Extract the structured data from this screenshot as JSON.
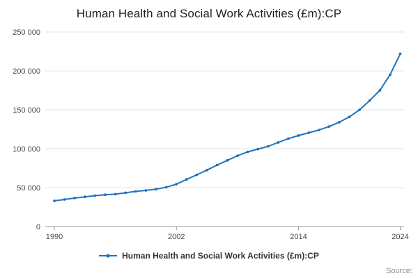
{
  "title": "Human Health and Social Work Activities (£m):CP",
  "legend": {
    "label": "Human Health and Social Work Activities (£m):CP"
  },
  "source_label": "Source:",
  "colors": {
    "line": "#2073bc",
    "grid": "#e3e3e3",
    "axis": "#9a9a9a",
    "tick_text": "#4a4a4a",
    "title_text": "#1f1f1f"
  },
  "chart_data": {
    "type": "line",
    "title": "Human Health and Social Work Activities (£m):CP",
    "xlabel": "",
    "ylabel": "",
    "grid": "horizontal",
    "legend_position": "bottom",
    "xlim": [
      1990,
      2024
    ],
    "ylim": [
      0,
      250000
    ],
    "xticks": [
      1990,
      2002,
      2014,
      2024
    ],
    "yticks": [
      {
        "value": 0,
        "label": "0"
      },
      {
        "value": 50000,
        "label": "50 000"
      },
      {
        "value": 100000,
        "label": "100 000"
      },
      {
        "value": 150000,
        "label": "150 000"
      },
      {
        "value": 200000,
        "label": "200 000"
      },
      {
        "value": 250000,
        "label": "250 000"
      }
    ],
    "x_years": [
      1990,
      1991,
      1992,
      1993,
      1994,
      1995,
      1996,
      1997,
      1998,
      1999,
      2000,
      2001,
      2002,
      2003,
      2004,
      2005,
      2006,
      2007,
      2008,
      2009,
      2010,
      2011,
      2012,
      2013,
      2014,
      2015,
      2016,
      2017,
      2018,
      2019,
      2020,
      2021,
      2022,
      2023,
      2024
    ],
    "values": [
      33000,
      34800,
      36600,
      38200,
      39700,
      40800,
      41600,
      43400,
      45200,
      46400,
      48000,
      50500,
      54500,
      60500,
      66500,
      72500,
      79000,
      85000,
      91000,
      96000,
      99500,
      103000,
      108000,
      113000,
      117000,
      120500,
      124000,
      128500,
      134000,
      141000,
      150000,
      162000,
      175000,
      195000,
      222000
    ]
  }
}
